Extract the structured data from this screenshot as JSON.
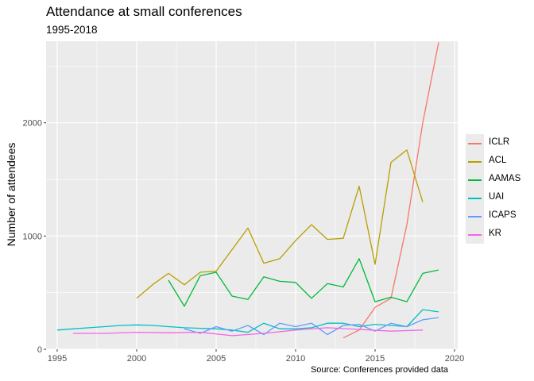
{
  "chart_data": {
    "type": "line",
    "title": "Attendance at small conferences",
    "subtitle": "1995-2018",
    "caption": "Source: Conferences provided data",
    "xlabel": "",
    "ylabel": "Number of attendees",
    "xlim": [
      1994.3,
      2020.2
    ],
    "ylim": [
      0,
      2720
    ],
    "x_ticks": [
      1995,
      2000,
      2005,
      2010,
      2015,
      2020
    ],
    "y_ticks": [
      0,
      1000,
      2000
    ],
    "grid": true,
    "legend_position": "right",
    "series": [
      {
        "name": "ICLR",
        "color": "#F8766D",
        "x": [
          2013,
          2014,
          2015,
          2016,
          2017,
          2018,
          2019
        ],
        "y": [
          100,
          170,
          370,
          450,
          1100,
          2000,
          2710
        ]
      },
      {
        "name": "ACL",
        "color": "#B79F00",
        "x": [
          2000,
          2001,
          2002,
          2003,
          2004,
          2005,
          2006,
          2007,
          2008,
          2009,
          2010,
          2011,
          2012,
          2013,
          2014,
          2015,
          2016,
          2017,
          2018
        ],
        "y": [
          450,
          570,
          670,
          570,
          680,
          690,
          880,
          1070,
          760,
          800,
          960,
          1100,
          970,
          980,
          1440,
          750,
          1650,
          1760,
          1300
        ]
      },
      {
        "name": "AAMAS",
        "color": "#00BA38",
        "x": [
          2002,
          2003,
          2004,
          2005,
          2006,
          2007,
          2008,
          2009,
          2010,
          2011,
          2012,
          2013,
          2014,
          2015,
          2016,
          2017,
          2018,
          2019
        ],
        "y": [
          610,
          380,
          650,
          680,
          470,
          440,
          640,
          600,
          590,
          450,
          580,
          550,
          800,
          420,
          460,
          420,
          670,
          700
        ]
      },
      {
        "name": "UAI",
        "color": "#00BFC4",
        "x": [
          1995,
          1996,
          1997,
          1998,
          1999,
          2000,
          2001,
          2002,
          2003,
          2004,
          2005,
          2006,
          2007,
          2008,
          2009,
          2010,
          2011,
          2012,
          2013,
          2014,
          2015,
          2016,
          2017,
          2018,
          2019
        ],
        "y": [
          170,
          180,
          190,
          200,
          210,
          215,
          210,
          200,
          190,
          185,
          180,
          170,
          150,
          230,
          180,
          180,
          190,
          230,
          230,
          200,
          220,
          210,
          200,
          350,
          330
        ]
      },
      {
        "name": "ICAPS",
        "color": "#619CFF",
        "x": [
          2003,
          2004,
          2005,
          2006,
          2007,
          2008,
          2009,
          2010,
          2011,
          2012,
          2013,
          2014,
          2015,
          2016,
          2017,
          2018,
          2019
        ],
        "y": [
          180,
          140,
          200,
          160,
          210,
          130,
          230,
          200,
          230,
          130,
          210,
          220,
          160,
          230,
          200,
          260,
          280
        ]
      },
      {
        "name": "KR",
        "color": "#F564E3",
        "x": [
          1996,
          1998,
          2000,
          2002,
          2004,
          2006,
          2008,
          2010,
          2012,
          2014,
          2016,
          2018
        ],
        "y": [
          140,
          140,
          150,
          145,
          150,
          120,
          140,
          170,
          190,
          175,
          160,
          170
        ]
      }
    ]
  }
}
